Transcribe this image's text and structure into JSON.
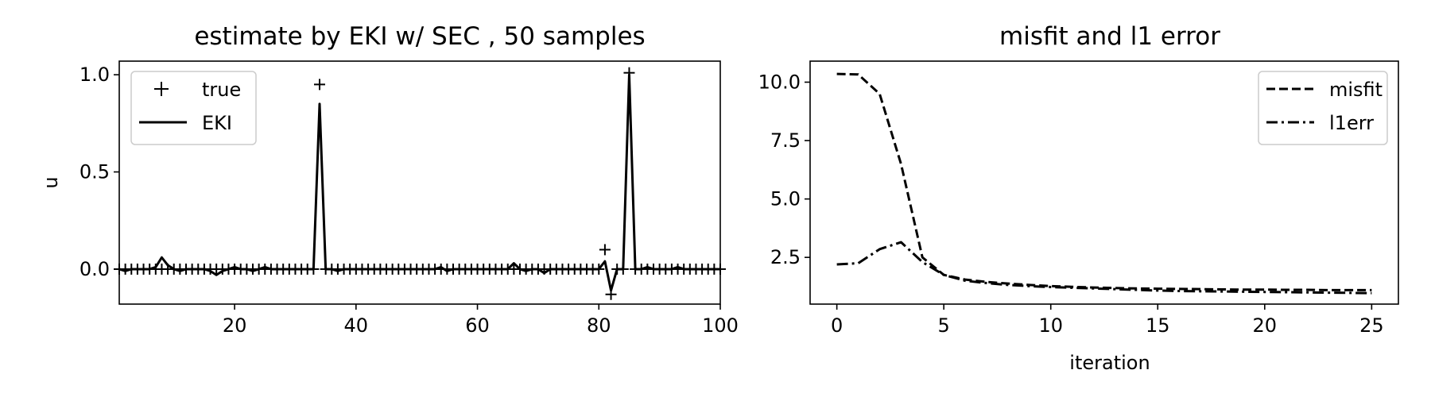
{
  "chart_data": [
    {
      "type": "line",
      "title": "estimate by EKI w/ SEC , 50 samples",
      "xlabel": "",
      "ylabel": "u",
      "xlim": [
        1,
        100
      ],
      "ylim": [
        -0.18,
        1.07
      ],
      "xticks": [
        20,
        40,
        60,
        80,
        100
      ],
      "xtick_labels": [
        "20",
        "40",
        "60",
        "80",
        "100"
      ],
      "yticks": [
        0.0,
        0.5,
        1.0
      ],
      "ytick_labels": [
        "0.0",
        "0.5",
        "1.0"
      ],
      "grid": false,
      "legend_position": "top-left",
      "series": [
        {
          "name": "true",
          "style": "plus-markers",
          "x": [
            1,
            2,
            3,
            4,
            5,
            6,
            7,
            8,
            9,
            10,
            11,
            12,
            13,
            14,
            15,
            16,
            17,
            18,
            19,
            20,
            21,
            22,
            23,
            24,
            25,
            26,
            27,
            28,
            29,
            30,
            31,
            32,
            33,
            34,
            35,
            36,
            37,
            38,
            39,
            40,
            41,
            42,
            43,
            44,
            45,
            46,
            47,
            48,
            49,
            50,
            51,
            52,
            53,
            54,
            55,
            56,
            57,
            58,
            59,
            60,
            61,
            62,
            63,
            64,
            65,
            66,
            67,
            68,
            69,
            70,
            71,
            72,
            73,
            74,
            75,
            76,
            77,
            78,
            79,
            80,
            81,
            82,
            83,
            84,
            85,
            86,
            87,
            88,
            89,
            90,
            91,
            92,
            93,
            94,
            95,
            96,
            97,
            98,
            99,
            100
          ],
          "y": [
            0,
            0,
            0,
            0,
            0,
            0,
            0,
            0,
            0,
            0,
            0,
            0,
            0,
            0,
            0,
            0,
            0,
            0,
            0,
            0,
            0,
            0,
            0,
            0,
            0,
            0,
            0,
            0,
            0,
            0,
            0,
            0,
            0,
            0.95,
            0,
            0,
            0,
            0,
            0,
            0,
            0,
            0,
            0,
            0,
            0,
            0,
            0,
            0,
            0,
            0,
            0,
            0,
            0,
            0,
            0,
            0,
            0,
            0,
            0,
            0,
            0,
            0,
            0,
            0,
            0,
            0,
            0,
            0,
            0,
            0,
            0,
            0,
            0,
            0,
            0,
            0,
            0,
            0,
            0,
            0,
            0.1,
            -0.13,
            0,
            0,
            1.01,
            0,
            0,
            0,
            0,
            0,
            0,
            0,
            0,
            0,
            0,
            0,
            0,
            0,
            0,
            0
          ]
        },
        {
          "name": "EKI",
          "style": "solid",
          "x": [
            1,
            2,
            3,
            4,
            5,
            6,
            7,
            8,
            9,
            10,
            11,
            12,
            13,
            14,
            15,
            16,
            17,
            18,
            19,
            20,
            21,
            22,
            23,
            24,
            25,
            26,
            27,
            28,
            29,
            30,
            31,
            32,
            33,
            34,
            35,
            36,
            37,
            38,
            39,
            40,
            41,
            42,
            43,
            44,
            45,
            46,
            47,
            48,
            49,
            50,
            51,
            52,
            53,
            54,
            55,
            56,
            57,
            58,
            59,
            60,
            61,
            62,
            63,
            64,
            65,
            66,
            67,
            68,
            69,
            70,
            71,
            72,
            73,
            74,
            75,
            76,
            77,
            78,
            79,
            80,
            81,
            82,
            83,
            84,
            85,
            86,
            87,
            88,
            89,
            90,
            91,
            92,
            93,
            94,
            95,
            96,
            97,
            98,
            99,
            100
          ],
          "y": [
            0,
            -0.01,
            0,
            0,
            0,
            0,
            0.01,
            0.06,
            0.02,
            0,
            -0.01,
            0,
            0,
            0,
            0,
            -0.01,
            -0.03,
            -0.01,
            0,
            0.01,
            0,
            0,
            -0.01,
            0,
            0.01,
            0,
            0,
            0,
            0,
            0,
            0,
            0,
            0,
            0.85,
            0,
            0,
            -0.01,
            0,
            0,
            0,
            0,
            0,
            0,
            0,
            0,
            0,
            0,
            0,
            0,
            0,
            0,
            0,
            0,
            0.01,
            -0.01,
            0,
            0,
            0,
            0,
            0,
            0,
            0,
            0,
            0,
            0,
            0.03,
            0,
            -0.01,
            0,
            0,
            -0.02,
            0,
            0,
            0,
            0,
            0,
            0,
            0,
            0,
            0,
            0.04,
            -0.11,
            0,
            0,
            1.0,
            0,
            0,
            0.01,
            0,
            0,
            0,
            0,
            0.01,
            0,
            0,
            0,
            0,
            0,
            0,
            0
          ]
        }
      ]
    },
    {
      "type": "line",
      "title": "misfit and l1 error",
      "xlabel": "iteration",
      "ylabel": "",
      "xlim": [
        -1.25,
        26.25
      ],
      "ylim": [
        0.5,
        10.9
      ],
      "xticks": [
        0,
        5,
        10,
        15,
        20,
        25
      ],
      "xtick_labels": [
        "0",
        "5",
        "10",
        "15",
        "20",
        "25"
      ],
      "yticks": [
        2.5,
        5.0,
        7.5,
        10.0
      ],
      "ytick_labels": [
        "2.5",
        "5.0",
        "7.5",
        "10.0"
      ],
      "grid": false,
      "legend_position": "top-right",
      "series": [
        {
          "name": "misfit",
          "style": "dashed",
          "x": [
            0,
            1,
            2,
            3,
            4,
            5,
            6,
            7,
            8,
            9,
            10,
            11,
            12,
            13,
            14,
            15,
            16,
            17,
            18,
            19,
            20,
            21,
            22,
            23,
            24,
            25
          ],
          "y": [
            10.35,
            10.33,
            9.5,
            6.5,
            2.5,
            1.75,
            1.55,
            1.45,
            1.38,
            1.32,
            1.27,
            1.24,
            1.21,
            1.19,
            1.17,
            1.16,
            1.15,
            1.14,
            1.13,
            1.12,
            1.12,
            1.11,
            1.11,
            1.1,
            1.1,
            1.1
          ]
        },
        {
          "name": "l1err",
          "style": "dashdot",
          "x": [
            0,
            1,
            2,
            3,
            4,
            5,
            6,
            7,
            8,
            9,
            10,
            11,
            12,
            13,
            14,
            15,
            16,
            17,
            18,
            19,
            20,
            21,
            22,
            23,
            24,
            25
          ],
          "y": [
            2.2,
            2.25,
            2.85,
            3.15,
            2.3,
            1.75,
            1.5,
            1.4,
            1.32,
            1.27,
            1.23,
            1.2,
            1.17,
            1.14,
            1.11,
            1.08,
            1.06,
            1.05,
            1.04,
            1.03,
            1.02,
            1.01,
            1.0,
            0.99,
            0.98,
            0.97
          ]
        }
      ]
    }
  ]
}
